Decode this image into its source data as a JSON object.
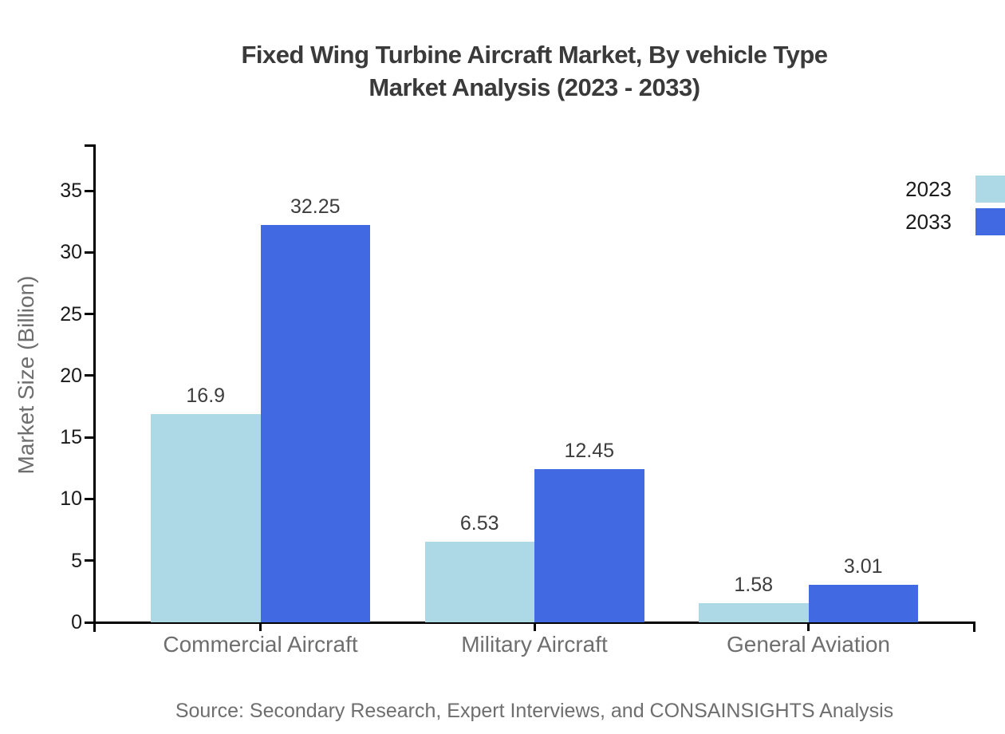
{
  "page": {
    "background": "#ffffff"
  },
  "title": {
    "line1": "Fixed Wing Turbine Aircraft Market, By vehicle Type",
    "line2": "Market Analysis (2023 - 2033)"
  },
  "source_note": "Source: Secondary Research, Expert Interviews, and CONSAINSIGHTS Analysis",
  "legend": {
    "position": "top-right",
    "items": [
      {
        "label": "2023",
        "color": "#ADD8E6"
      },
      {
        "label": "2033",
        "color": "#4169E1"
      }
    ]
  },
  "chart_data": {
    "type": "bar",
    "title": "Fixed Wing Turbine Aircraft Market, By vehicle Type Market Analysis (2023 - 2033)",
    "categories": [
      "Commercial Aircraft",
      "Military Aircraft",
      "General Aviation"
    ],
    "series": [
      {
        "name": "2023",
        "color": "#ADD8E6",
        "values": [
          16.9,
          6.53,
          1.58
        ]
      },
      {
        "name": "2033",
        "color": "#4169E1",
        "values": [
          32.25,
          12.45,
          3.01
        ]
      }
    ],
    "xlabel": "",
    "ylabel": "Market Size (Billion)",
    "yticks": [
      0,
      5,
      10,
      15,
      20,
      25,
      30,
      35
    ],
    "ylim": [
      0,
      38.8
    ],
    "grid": false,
    "value_labels": true,
    "legend_position": "top-right"
  },
  "colors": {
    "axis": "#000000",
    "title_text": "#3a3a3a",
    "tick_text": "#1a1a1a",
    "value_text": "#3d3d3d",
    "muted_text": "#6e6e6e",
    "series_2023": "#ADD8E6",
    "series_2033": "#4169E1"
  }
}
